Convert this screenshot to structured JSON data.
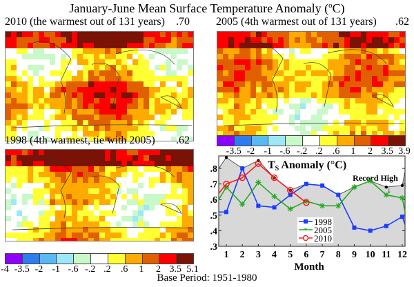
{
  "title": {
    "main": "January-June Mean Surface Temperature Anomaly (",
    "sup": "o",
    "unit": "C)"
  },
  "panels": [
    {
      "id": "2010",
      "label": "2010 (the warmest out of 131 years)",
      "value": ".70"
    },
    {
      "id": "2005",
      "label": "2005 (4th warmest out of 131 years)",
      "value": ".62"
    },
    {
      "id": "1998",
      "label": "1998 (4th warmest, tie with 2005)",
      "value": ".62"
    }
  ],
  "colorbar": {
    "colors": [
      "#8b00ff",
      "#2d7cf0",
      "#5ab9f5",
      "#9ce8f8",
      "#c9f8c9",
      "#ffffff",
      "#ffff33",
      "#ffaa00",
      "#e06000",
      "#ff0000",
      "#7a1205"
    ],
    "labels_2005": [
      "-3.5",
      "-2",
      "-1",
      "-.6",
      "-.2",
      ".2",
      ".6",
      "1",
      "2",
      "3.5",
      "3.9"
    ],
    "labels_1998": [
      "-4",
      "-3.5",
      "-2",
      "-1",
      "-.6",
      "-.2",
      ".2",
      ".6",
      "1",
      "2",
      "3.5",
      "5.1"
    ]
  },
  "footer": "Base Period: 1951-1980",
  "chart_data": {
    "type": "line",
    "title": "TS Anomaly (°C)",
    "title_main": "T",
    "title_sub": "S",
    "title_rest": " Anomaly (°C)",
    "xlabel": "Month",
    "ylabel": "",
    "x": [
      1,
      2,
      3,
      4,
      5,
      6,
      7,
      8,
      9,
      10,
      11,
      12
    ],
    "x_tick_labels": [
      "1",
      "2",
      "3",
      "4",
      "5",
      "6",
      "7",
      "8",
      "9",
      "10",
      "11",
      "12"
    ],
    "y_tick_labels": [
      ".3",
      ".4",
      ".5",
      ".6",
      ".7",
      ".8"
    ],
    "y_ticks": [
      0.3,
      0.4,
      0.5,
      0.6,
      0.7,
      0.8
    ],
    "ylim": [
      0.3,
      0.88
    ],
    "xlim": [
      0.5,
      12.5
    ],
    "annotation": "Record High",
    "annotation_arrow": "↓",
    "record_high": {
      "name": "Record High",
      "values": [
        0.87,
        0.8,
        0.85,
        0.74,
        0.66,
        0.7,
        0.69,
        0.63,
        0.68,
        0.72,
        0.68,
        0.69
      ],
      "left_edge": 0.8,
      "right_edge": 0.78,
      "color": "#555555",
      "fill": "#d8d8d8"
    },
    "series": [
      {
        "name": "1998",
        "color": "#1a3cff",
        "marker": "square",
        "values": [
          0.52,
          0.8,
          0.56,
          0.55,
          0.63,
          0.7,
          0.69,
          0.63,
          0.42,
          0.4,
          0.43,
          0.49
        ],
        "left_edge": 0.52,
        "right_edge": 0.44
      },
      {
        "name": "2005",
        "color": "#22aa22",
        "marker": "star",
        "values": [
          0.68,
          0.57,
          0.71,
          0.62,
          0.54,
          0.59,
          0.56,
          0.56,
          0.68,
          0.72,
          0.63,
          0.61
        ],
        "left_edge": 0.6,
        "right_edge": 0.52
      },
      {
        "name": "2010",
        "color": "#ff1a1a",
        "marker": "circle",
        "values": [
          0.7,
          0.74,
          0.83,
          0.74,
          0.66,
          0.58
        ],
        "left_edge": 0.64,
        "right_edge": null
      }
    ],
    "legend": {
      "position": "lower-center",
      "entries": [
        "1998",
        "2005",
        "2010"
      ]
    },
    "grid": false
  }
}
